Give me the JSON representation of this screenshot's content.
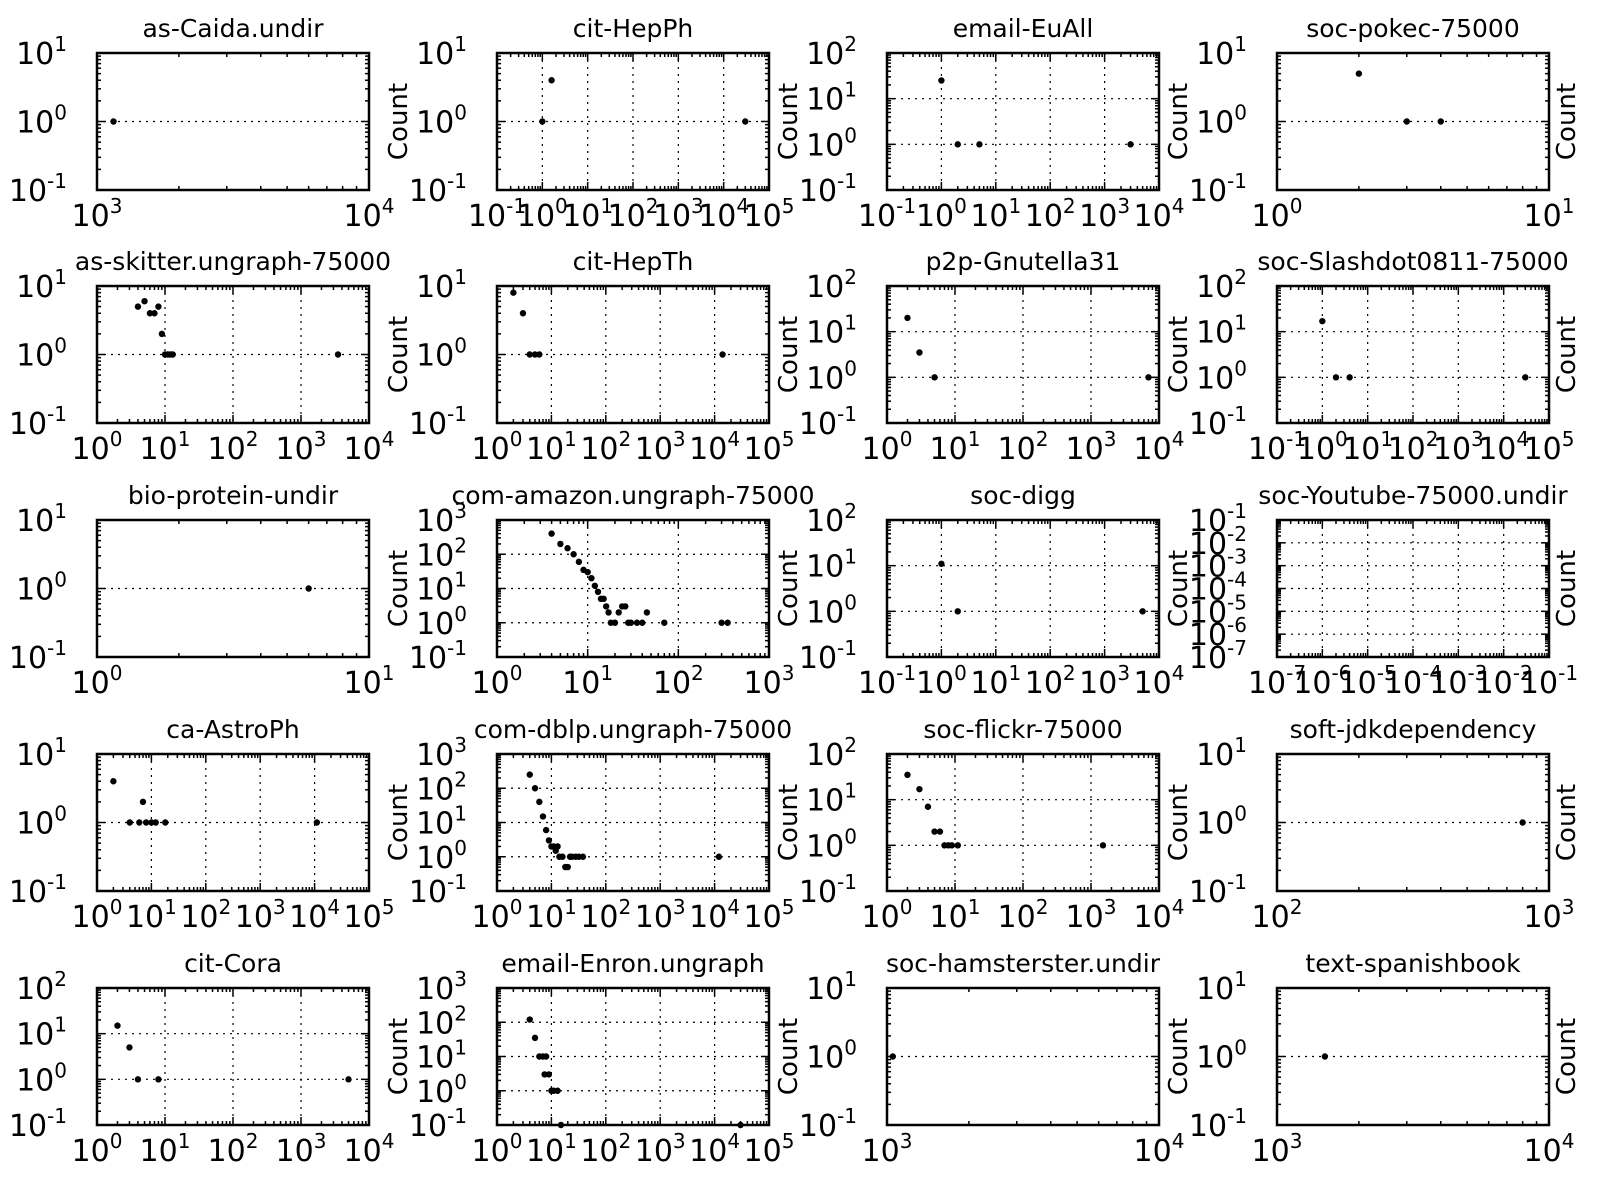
{
  "y_label": "Count",
  "chart_data": [
    {
      "type": "scatter",
      "title": "as-Caida.undir",
      "xscale": "log",
      "yscale": "log",
      "xlim": [
        1000,
        10000
      ],
      "ylim": [
        0.1,
        10
      ],
      "ylabel": "",
      "grid": true,
      "points": [
        [
          1150,
          1
        ]
      ]
    },
    {
      "type": "scatter",
      "title": "cit-HepPh",
      "xscale": "log",
      "yscale": "log",
      "xlim": [
        0.1,
        100000
      ],
      "ylim": [
        0.1,
        10
      ],
      "ylabel": "Count",
      "grid": true,
      "points": [
        [
          1,
          1
        ],
        [
          1.6,
          4
        ],
        [
          30000,
          1
        ]
      ]
    },
    {
      "type": "scatter",
      "title": "email-EuAll",
      "xscale": "log",
      "yscale": "log",
      "xlim": [
        0.1,
        10000
      ],
      "ylim": [
        0.1,
        100
      ],
      "ylabel": "Count",
      "grid": true,
      "points": [
        [
          1,
          25
        ],
        [
          2,
          1
        ],
        [
          5,
          1
        ],
        [
          3000,
          1
        ]
      ]
    },
    {
      "type": "scatter",
      "title": "soc-pokec-75000",
      "xscale": "log",
      "yscale": "log",
      "xlim": [
        1,
        10
      ],
      "ylim": [
        0.1,
        10
      ],
      "ylabel": "Count",
      "grid": true,
      "points": [
        [
          2,
          5
        ],
        [
          3,
          1
        ],
        [
          4,
          1
        ]
      ]
    },
    {
      "type": "scatter",
      "title": "as-skitter.ungraph-75000",
      "xscale": "log",
      "yscale": "log",
      "xlim": [
        1,
        10000
      ],
      "ylim": [
        0.1,
        10
      ],
      "ylabel": "",
      "grid": true,
      "points": [
        [
          4,
          5
        ],
        [
          5,
          6
        ],
        [
          6,
          4
        ],
        [
          7,
          4
        ],
        [
          8,
          5
        ],
        [
          9,
          2
        ],
        [
          10,
          1
        ],
        [
          11,
          1
        ],
        [
          12,
          1
        ],
        [
          13,
          1
        ],
        [
          3500,
          1
        ]
      ]
    },
    {
      "type": "scatter",
      "title": "cit-HepTh",
      "xscale": "log",
      "yscale": "log",
      "xlim": [
        1,
        100000
      ],
      "ylim": [
        0.1,
        10
      ],
      "ylabel": "Count",
      "grid": true,
      "points": [
        [
          2,
          8
        ],
        [
          3,
          4
        ],
        [
          4,
          1
        ],
        [
          5,
          1
        ],
        [
          6,
          1
        ],
        [
          14000,
          1
        ]
      ]
    },
    {
      "type": "scatter",
      "title": "p2p-Gnutella31",
      "xscale": "log",
      "yscale": "log",
      "xlim": [
        1,
        10000
      ],
      "ylim": [
        0.1,
        100
      ],
      "ylabel": "Count",
      "grid": true,
      "points": [
        [
          2,
          20
        ],
        [
          3,
          3.5
        ],
        [
          5,
          1
        ],
        [
          7000,
          1
        ]
      ]
    },
    {
      "type": "scatter",
      "title": "soc-Slashdot0811-75000",
      "xscale": "log",
      "yscale": "log",
      "xlim": [
        0.1,
        100000
      ],
      "ylim": [
        0.1,
        100
      ],
      "ylabel": "Count",
      "grid": true,
      "points": [
        [
          1,
          17
        ],
        [
          2,
          1
        ],
        [
          4,
          1
        ],
        [
          30000,
          1
        ]
      ]
    },
    {
      "type": "scatter",
      "title": "bio-protein-undir",
      "xscale": "log",
      "yscale": "log",
      "xlim": [
        1,
        10
      ],
      "ylim": [
        0.1,
        10
      ],
      "ylabel": "",
      "grid": true,
      "points": [
        [
          6,
          1
        ]
      ]
    },
    {
      "type": "scatter",
      "title": "com-amazon.ungraph-75000",
      "xscale": "log",
      "yscale": "log",
      "xlim": [
        1,
        1000
      ],
      "ylim": [
        0.1,
        1000
      ],
      "ylabel": "Count",
      "grid": true,
      "points": [
        [
          4,
          400
        ],
        [
          5,
          200
        ],
        [
          6,
          150
        ],
        [
          7,
          100
        ],
        [
          8,
          60
        ],
        [
          9,
          35
        ],
        [
          10,
          30
        ],
        [
          11,
          20
        ],
        [
          12,
          12
        ],
        [
          13,
          8
        ],
        [
          14,
          5
        ],
        [
          15,
          5
        ],
        [
          16,
          3
        ],
        [
          17,
          2
        ],
        [
          18,
          1
        ],
        [
          20,
          1
        ],
        [
          22,
          2
        ],
        [
          24,
          3
        ],
        [
          26,
          3
        ],
        [
          28,
          1
        ],
        [
          30,
          1
        ],
        [
          35,
          1
        ],
        [
          40,
          1
        ],
        [
          45,
          2
        ],
        [
          70,
          1
        ],
        [
          300,
          1
        ],
        [
          350,
          1
        ]
      ]
    },
    {
      "type": "scatter",
      "title": "soc-digg",
      "xscale": "log",
      "yscale": "log",
      "xlim": [
        0.1,
        10000
      ],
      "ylim": [
        0.1,
        100
      ],
      "ylabel": "Count",
      "grid": true,
      "points": [
        [
          1,
          11
        ],
        [
          2,
          1
        ],
        [
          5000,
          1
        ]
      ]
    },
    {
      "type": "scatter",
      "title": "soc-Youtube-75000.undir",
      "xscale": "log",
      "yscale": "log",
      "xlim": [
        1e-07,
        0.1
      ],
      "ylim": [
        1e-07,
        0.1
      ],
      "ylabel": "Count",
      "grid": true,
      "points": []
    },
    {
      "type": "scatter",
      "title": "ca-AstroPh",
      "xscale": "log",
      "yscale": "log",
      "xlim": [
        1,
        100000
      ],
      "ylim": [
        0.1,
        10
      ],
      "ylabel": "",
      "grid": true,
      "points": [
        [
          2,
          4
        ],
        [
          4,
          1
        ],
        [
          6,
          1
        ],
        [
          7,
          2
        ],
        [
          8,
          1
        ],
        [
          10,
          1
        ],
        [
          12,
          1
        ],
        [
          18,
          1
        ],
        [
          11000,
          1
        ]
      ]
    },
    {
      "type": "scatter",
      "title": "com-dblp.ungraph-75000",
      "xscale": "log",
      "yscale": "log",
      "xlim": [
        1,
        100000
      ],
      "ylim": [
        0.1,
        1000
      ],
      "ylabel": "Count",
      "grid": true,
      "points": [
        [
          4,
          250
        ],
        [
          5,
          100
        ],
        [
          6,
          40
        ],
        [
          7,
          15
        ],
        [
          8,
          6
        ],
        [
          9,
          3
        ],
        [
          10,
          2
        ],
        [
          11,
          2
        ],
        [
          12,
          1.5
        ],
        [
          13,
          2
        ],
        [
          14,
          1
        ],
        [
          16,
          1
        ],
        [
          18,
          0.5
        ],
        [
          20,
          0.5
        ],
        [
          22,
          1
        ],
        [
          24,
          1
        ],
        [
          28,
          1
        ],
        [
          32,
          1
        ],
        [
          38,
          1
        ],
        [
          12000,
          1
        ]
      ]
    },
    {
      "type": "scatter",
      "title": "soc-flickr-75000",
      "xscale": "log",
      "yscale": "log",
      "xlim": [
        1,
        10000
      ],
      "ylim": [
        0.1,
        100
      ],
      "ylabel": "Count",
      "grid": true,
      "points": [
        [
          2,
          35
        ],
        [
          3,
          17
        ],
        [
          4,
          7
        ],
        [
          5,
          2
        ],
        [
          6,
          2
        ],
        [
          7,
          1
        ],
        [
          8,
          1
        ],
        [
          9,
          1
        ],
        [
          11,
          1
        ],
        [
          1500,
          1
        ]
      ]
    },
    {
      "type": "scatter",
      "title": "soft-jdkdependency",
      "xscale": "log",
      "yscale": "log",
      "xlim": [
        100,
        1000
      ],
      "ylim": [
        0.1,
        10
      ],
      "ylabel": "Count",
      "grid": true,
      "points": [
        [
          800,
          1
        ]
      ]
    },
    {
      "type": "scatter",
      "title": "cit-Cora",
      "xscale": "log",
      "yscale": "log",
      "xlim": [
        1,
        10000
      ],
      "ylim": [
        0.1,
        100
      ],
      "ylabel": "",
      "grid": true,
      "points": [
        [
          2,
          15
        ],
        [
          3,
          5
        ],
        [
          4,
          1
        ],
        [
          8,
          1
        ],
        [
          5000,
          1
        ]
      ]
    },
    {
      "type": "scatter",
      "title": "email-Enron.ungraph",
      "xscale": "log",
      "yscale": "log",
      "xlim": [
        1,
        100000
      ],
      "ylim": [
        0.1,
        1000
      ],
      "ylabel": "Count",
      "grid": true,
      "points": [
        [
          4,
          120
        ],
        [
          5,
          35
        ],
        [
          6,
          10
        ],
        [
          7,
          10
        ],
        [
          7.5,
          3
        ],
        [
          8,
          10
        ],
        [
          9,
          3
        ],
        [
          10,
          1
        ],
        [
          11,
          1
        ],
        [
          13,
          1
        ],
        [
          15,
          0.1
        ],
        [
          30000,
          0.1
        ]
      ]
    },
    {
      "type": "scatter",
      "title": "soc-hamsterster.undir",
      "xscale": "log",
      "yscale": "log",
      "xlim": [
        1000,
        10000
      ],
      "ylim": [
        0.1,
        10
      ],
      "ylabel": "Count",
      "grid": true,
      "points": [
        [
          1050,
          1
        ]
      ]
    },
    {
      "type": "scatter",
      "title": "text-spanishbook",
      "xscale": "log",
      "yscale": "log",
      "xlim": [
        1000,
        10000
      ],
      "ylim": [
        0.1,
        10
      ],
      "ylabel": "Count",
      "grid": true,
      "points": [
        [
          1500,
          1
        ]
      ]
    }
  ]
}
